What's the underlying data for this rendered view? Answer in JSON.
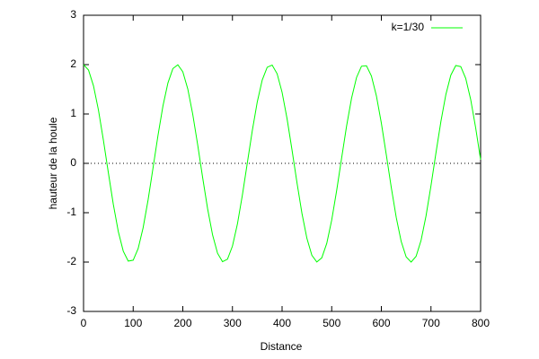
{
  "chart_data": {
    "type": "line",
    "xlabel": "Distance",
    "ylabel": "hauteur de la houle",
    "x": [
      0,
      10,
      20,
      30,
      40,
      50,
      60,
      70,
      80,
      90,
      100,
      110,
      120,
      130,
      140,
      150,
      160,
      170,
      180,
      190,
      200,
      210,
      220,
      230,
      240,
      250,
      260,
      270,
      280,
      290,
      300,
      310,
      320,
      330,
      340,
      350,
      360,
      370,
      380,
      390,
      400,
      410,
      420,
      430,
      440,
      450,
      460,
      470,
      480,
      490,
      500,
      510,
      520,
      530,
      540,
      550,
      560,
      570,
      580,
      590,
      600,
      610,
      620,
      630,
      640,
      650,
      660,
      670,
      680,
      690,
      700,
      710,
      720,
      730,
      740,
      750,
      760,
      770,
      780,
      790,
      800
    ],
    "series": [
      {
        "name": "k=1/30",
        "color": "#00ff00",
        "values": [
          2,
          1.89,
          1.572,
          1.081,
          0.47,
          -0.191,
          -0.832,
          -1.381,
          -1.778,
          -1.98,
          -1.962,
          -1.726,
          -1.307,
          -0.743,
          -0.092,
          0.567,
          1.163,
          1.629,
          1.92,
          1.997,
          1.855,
          1.508,
          0.994,
          0.373,
          -0.291,
          -0.923,
          -1.451,
          -1.822,
          -1.992,
          -1.942,
          -1.678,
          -1.23,
          -0.645,
          0.009,
          0.662,
          1.244,
          1.688,
          1.946,
          1.99,
          1.815,
          1.44,
          0.907,
          0.273,
          -0.39,
          -1.011,
          -1.519,
          -1.861,
          -1.998,
          -1.915,
          -1.622,
          -1.149,
          -0.55,
          0.109,
          0.757,
          1.321,
          1.739,
          1.967,
          1.977,
          1.77,
          1.369,
          0.816,
          0.174,
          -0.488,
          -1.095,
          -1.583,
          -1.896,
          -2.0,
          -1.884,
          -1.561,
          -1.066,
          -0.453,
          0.209,
          0.848,
          1.394,
          1.787,
          1.982,
          1.96,
          1.722,
          1.294,
          0.722,
          0.074
        ]
      }
    ],
    "xlim": [
      0,
      800
    ],
    "ylim": [
      -3,
      3
    ],
    "xticks": [
      0,
      100,
      200,
      300,
      400,
      500,
      600,
      700,
      800
    ],
    "yticks": [
      -3,
      -2,
      -1,
      0,
      1,
      2,
      3
    ],
    "zeroaxis": true,
    "legend": "top-right"
  }
}
